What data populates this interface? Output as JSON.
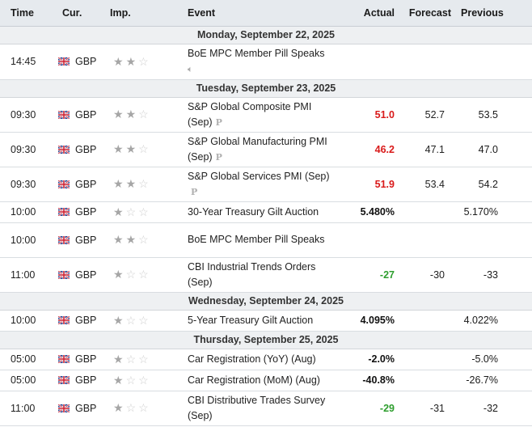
{
  "headers": {
    "time": "Time",
    "cur": "Cur.",
    "imp": "Imp.",
    "event": "Event",
    "actual": "Actual",
    "forecast": "Forecast",
    "previous": "Previous"
  },
  "dates": [
    "Monday, September 22, 2025",
    "Tuesday, September 23, 2025",
    "Wednesday, September 24, 2025",
    "Thursday, September 25, 2025"
  ],
  "colors": {
    "red": "#d91a1a",
    "green": "#2e9e2e"
  },
  "events": [
    {
      "time": "14:45",
      "cur": "GBP",
      "stars": 2,
      "line1": "BoE MPC Member Pill Speaks",
      "line2": "",
      "icon": "speaker-icon",
      "actual": "",
      "actual_color": "",
      "forecast": "",
      "previous": ""
    },
    {
      "time": "09:30",
      "cur": "GBP",
      "stars": 2,
      "line1": "S&P Global Composite PMI",
      "line2": "(Sep)",
      "icon": "preliminary-icon",
      "actual": "51.0",
      "actual_color": "red",
      "forecast": "52.7",
      "previous": "53.5"
    },
    {
      "time": "09:30",
      "cur": "GBP",
      "stars": 2,
      "line1": "S&P Global Manufacturing PMI",
      "line2": "(Sep)",
      "icon": "preliminary-icon",
      "actual": "46.2",
      "actual_color": "red",
      "forecast": "47.1",
      "previous": "47.0"
    },
    {
      "time": "09:30",
      "cur": "GBP",
      "stars": 2,
      "line1": "S&P Global Services PMI (Sep)",
      "line2": "",
      "icon": "preliminary-icon",
      "actual": "51.9",
      "actual_color": "red",
      "forecast": "53.4",
      "previous": "54.2"
    },
    {
      "time": "10:00",
      "cur": "GBP",
      "stars": 1,
      "line1": "30-Year Treasury Gilt Auction",
      "line2": "",
      "icon": "",
      "actual": "5.480%",
      "actual_color": "black",
      "forecast": "",
      "previous": "5.170%"
    },
    {
      "time": "10:00",
      "cur": "GBP",
      "stars": 2,
      "line1": "BoE MPC Member Pill Speaks",
      "line2": "",
      "icon": "",
      "actual": "",
      "actual_color": "",
      "forecast": "",
      "previous": ""
    },
    {
      "time": "11:00",
      "cur": "GBP",
      "stars": 1,
      "line1": "CBI Industrial Trends Orders",
      "line2": "(Sep)",
      "icon": "",
      "actual": "-27",
      "actual_color": "green",
      "forecast": "-30",
      "previous": "-33"
    },
    {
      "time": "10:00",
      "cur": "GBP",
      "stars": 1,
      "line1": "5-Year Treasury Gilt Auction",
      "line2": "",
      "icon": "",
      "actual": "4.095%",
      "actual_color": "black",
      "forecast": "",
      "previous": "4.022%"
    },
    {
      "time": "05:00",
      "cur": "GBP",
      "stars": 1,
      "line1": "Car Registration (YoY) (Aug)",
      "line2": "",
      "icon": "",
      "actual": "-2.0%",
      "actual_color": "black",
      "forecast": "",
      "previous": "-5.0%"
    },
    {
      "time": "05:00",
      "cur": "GBP",
      "stars": 1,
      "line1": "Car Registration (MoM) (Aug)",
      "line2": "",
      "icon": "",
      "actual": "-40.8%",
      "actual_color": "black",
      "forecast": "",
      "previous": "-26.7%"
    },
    {
      "time": "11:00",
      "cur": "GBP",
      "stars": 1,
      "line1": "CBI Distributive Trades Survey",
      "line2": "(Sep)",
      "icon": "",
      "actual": "-29",
      "actual_color": "green",
      "forecast": "-31",
      "previous": "-32"
    }
  ]
}
